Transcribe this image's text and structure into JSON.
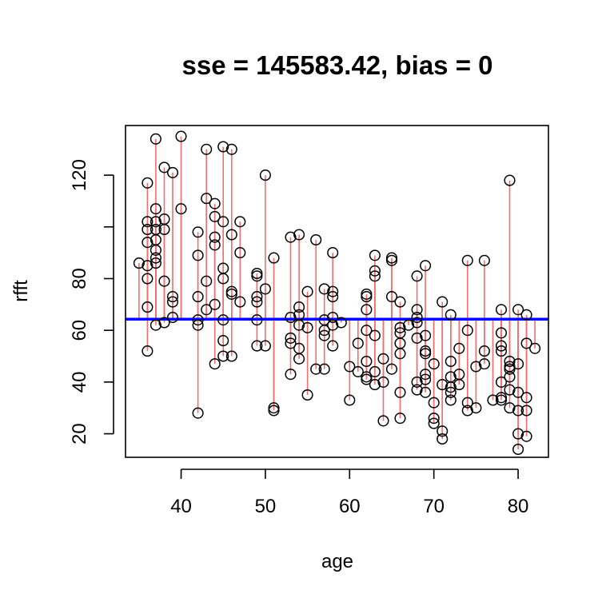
{
  "chart_data": {
    "type": "scatter",
    "title": "sse = 145583.42, bias = 0",
    "xlabel": "age",
    "ylabel": "rfft",
    "xlim": [
      33.4,
      83.6
    ],
    "ylim": [
      10.9,
      139.2
    ],
    "x_ticks": [
      40,
      50,
      60,
      70,
      80
    ],
    "y_ticks": [
      20,
      40,
      60,
      80,
      100,
      120
    ],
    "y_tick_labels": [
      "20",
      "40",
      "60",
      "80",
      "",
      "120"
    ],
    "fit_line": {
      "intercept": 64.3,
      "slope": 0,
      "color": "#0000ff"
    },
    "residual_color": "#f07070",
    "point_style": "open-circle",
    "grid": false,
    "legend": "none",
    "points": [
      [
        35,
        86
      ],
      [
        36,
        117
      ],
      [
        36,
        102
      ],
      [
        36,
        99
      ],
      [
        36,
        94
      ],
      [
        36,
        85
      ],
      [
        36,
        80
      ],
      [
        36,
        69
      ],
      [
        36,
        52
      ],
      [
        37,
        134
      ],
      [
        37,
        107
      ],
      [
        37,
        102
      ],
      [
        37,
        99
      ],
      [
        37,
        95
      ],
      [
        37,
        91
      ],
      [
        37,
        88
      ],
      [
        37,
        86
      ],
      [
        37,
        62
      ],
      [
        38,
        123
      ],
      [
        38,
        103
      ],
      [
        38,
        99
      ],
      [
        38,
        79
      ],
      [
        38,
        63
      ],
      [
        39,
        121
      ],
      [
        39,
        73
      ],
      [
        39,
        71
      ],
      [
        39,
        65
      ],
      [
        40,
        135
      ],
      [
        40,
        107
      ],
      [
        42,
        98
      ],
      [
        42,
        89
      ],
      [
        42,
        73
      ],
      [
        42,
        64
      ],
      [
        42,
        62
      ],
      [
        42,
        28
      ],
      [
        43,
        130
      ],
      [
        43,
        111
      ],
      [
        43,
        79
      ],
      [
        43,
        68
      ],
      [
        44,
        109
      ],
      [
        44,
        104
      ],
      [
        44,
        96
      ],
      [
        44,
        93
      ],
      [
        44,
        70
      ],
      [
        44,
        47
      ],
      [
        45,
        131
      ],
      [
        45,
        102
      ],
      [
        45,
        84
      ],
      [
        45,
        80
      ],
      [
        45,
        64
      ],
      [
        45,
        56
      ],
      [
        45,
        50
      ],
      [
        46,
        130
      ],
      [
        46,
        97
      ],
      [
        46,
        75
      ],
      [
        46,
        74
      ],
      [
        46,
        50
      ],
      [
        47,
        102
      ],
      [
        47,
        90
      ],
      [
        47,
        71
      ],
      [
        49,
        82
      ],
      [
        49,
        81
      ],
      [
        49,
        73
      ],
      [
        49,
        71
      ],
      [
        49,
        64
      ],
      [
        49,
        54
      ],
      [
        50,
        120
      ],
      [
        50,
        76
      ],
      [
        50,
        54
      ],
      [
        51,
        88
      ],
      [
        51,
        30
      ],
      [
        51,
        29
      ],
      [
        53,
        96
      ],
      [
        53,
        65
      ],
      [
        53,
        57
      ],
      [
        53,
        55
      ],
      [
        53,
        43
      ],
      [
        54,
        97
      ],
      [
        54,
        69
      ],
      [
        54,
        66
      ],
      [
        54,
        62
      ],
      [
        54,
        53
      ],
      [
        54,
        49
      ],
      [
        55,
        75
      ],
      [
        55,
        61
      ],
      [
        55,
        35
      ],
      [
        56,
        95
      ],
      [
        56,
        45
      ],
      [
        57,
        76
      ],
      [
        57,
        64
      ],
      [
        57,
        60
      ],
      [
        57,
        58
      ],
      [
        57,
        45
      ],
      [
        58,
        90
      ],
      [
        58,
        75
      ],
      [
        58,
        73
      ],
      [
        58,
        65
      ],
      [
        58,
        62
      ],
      [
        58,
        54
      ],
      [
        59,
        63
      ],
      [
        60,
        46
      ],
      [
        60,
        33
      ],
      [
        61,
        55
      ],
      [
        61,
        44
      ],
      [
        62,
        74
      ],
      [
        62,
        73
      ],
      [
        62,
        68
      ],
      [
        62,
        60
      ],
      [
        62,
        48
      ],
      [
        62,
        42
      ],
      [
        62,
        41
      ],
      [
        63,
        89
      ],
      [
        63,
        83
      ],
      [
        63,
        81
      ],
      [
        63,
        58
      ],
      [
        63,
        44
      ],
      [
        63,
        39
      ],
      [
        64,
        49
      ],
      [
        64,
        40
      ],
      [
        64,
        25
      ],
      [
        65,
        88
      ],
      [
        65,
        87
      ],
      [
        65,
        73
      ],
      [
        65,
        45
      ],
      [
        66,
        71
      ],
      [
        66,
        61
      ],
      [
        66,
        59
      ],
      [
        66,
        55
      ],
      [
        66,
        51
      ],
      [
        66,
        36
      ],
      [
        66,
        26
      ],
      [
        67,
        62
      ],
      [
        68,
        81
      ],
      [
        68,
        68
      ],
      [
        68,
        65
      ],
      [
        68,
        63
      ],
      [
        68,
        57
      ],
      [
        68,
        40
      ],
      [
        68,
        37
      ],
      [
        69,
        85
      ],
      [
        69,
        58
      ],
      [
        69,
        52
      ],
      [
        69,
        51
      ],
      [
        69,
        43
      ],
      [
        69,
        41
      ],
      [
        69,
        36
      ],
      [
        70,
        47
      ],
      [
        70,
        32
      ],
      [
        70,
        26
      ],
      [
        70,
        24
      ],
      [
        71,
        71
      ],
      [
        71,
        39
      ],
      [
        71,
        21
      ],
      [
        71,
        18
      ],
      [
        72,
        66
      ],
      [
        72,
        48
      ],
      [
        72,
        42
      ],
      [
        72,
        38
      ],
      [
        72,
        36
      ],
      [
        72,
        33
      ],
      [
        73,
        53
      ],
      [
        73,
        43
      ],
      [
        73,
        39
      ],
      [
        74,
        87
      ],
      [
        74,
        60
      ],
      [
        74,
        32
      ],
      [
        74,
        29
      ],
      [
        75,
        46
      ],
      [
        75,
        30
      ],
      [
        76,
        87
      ],
      [
        76,
        52
      ],
      [
        76,
        47
      ],
      [
        77,
        33
      ],
      [
        78,
        68
      ],
      [
        78,
        59
      ],
      [
        78,
        54
      ],
      [
        78,
        52
      ],
      [
        78,
        40
      ],
      [
        78,
        34
      ],
      [
        78,
        33
      ],
      [
        79,
        118
      ],
      [
        79,
        48
      ],
      [
        79,
        46
      ],
      [
        79,
        45
      ],
      [
        79,
        42
      ],
      [
        79,
        37
      ],
      [
        79,
        30
      ],
      [
        80,
        68
      ],
      [
        80,
        47
      ],
      [
        80,
        36
      ],
      [
        80,
        29
      ],
      [
        80,
        20
      ],
      [
        80,
        14
      ],
      [
        81,
        66
      ],
      [
        81,
        55
      ],
      [
        81,
        34
      ],
      [
        81,
        29
      ],
      [
        81,
        19
      ],
      [
        82,
        53
      ]
    ]
  }
}
